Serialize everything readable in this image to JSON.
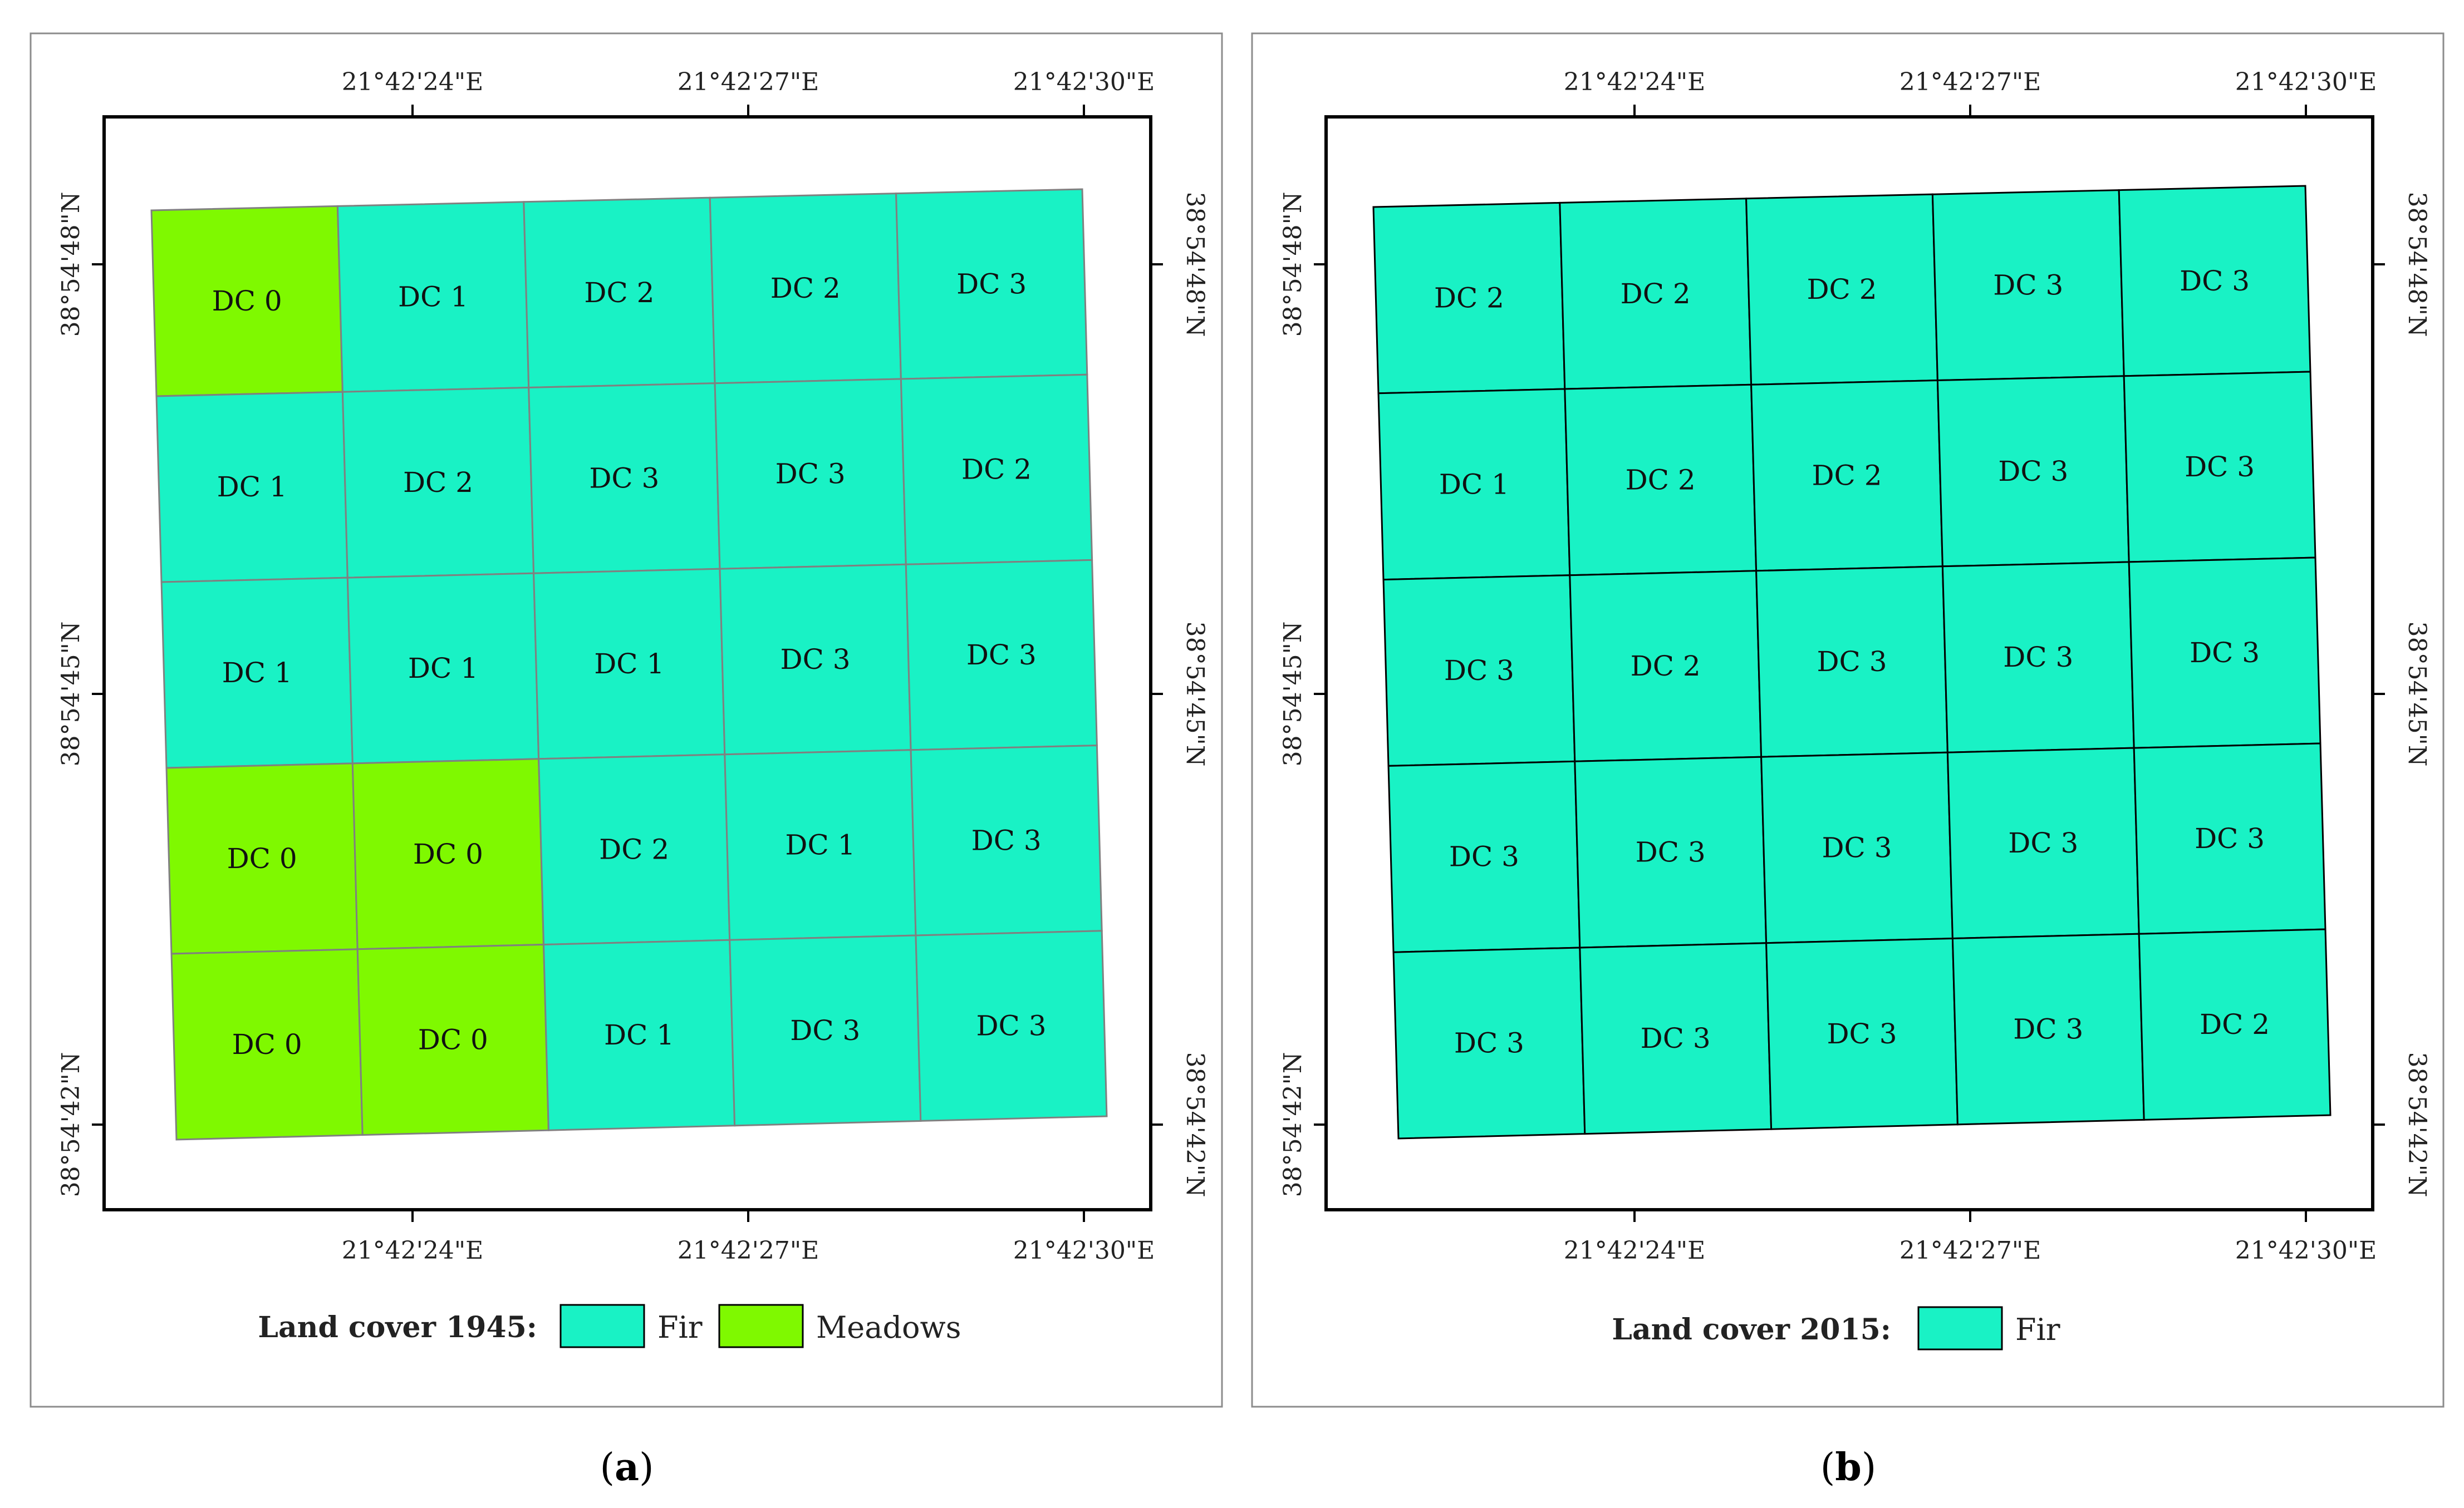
{
  "colors": {
    "fir": "#19f2c5",
    "meadows": "#7ff900",
    "frame": "#000000",
    "panel_border": "#8c8c8c"
  },
  "panels": [
    {
      "id": "a",
      "caption": "a",
      "legend": {
        "title": "Land cover 1945:",
        "items": [
          {
            "label": "Fir",
            "class": "fir"
          },
          {
            "label": "Meadows",
            "class": "meadows"
          }
        ]
      },
      "coords": {
        "lon": [
          "21°42'24\"E",
          "21°42'27\"E",
          "21°42'30\"E"
        ],
        "lat": [
          "38°54'48\"N",
          "38°54'45\"N",
          "38°54'42\"N"
        ]
      },
      "grid_lines": "gray",
      "cells": [
        [
          {
            "label": "DC 0",
            "class": "meadows"
          },
          {
            "label": "DC 1",
            "class": "fir"
          },
          {
            "label": "DC 2",
            "class": "fir"
          },
          {
            "label": "DC 2",
            "class": "fir"
          },
          {
            "label": "DC 3",
            "class": "fir"
          }
        ],
        [
          {
            "label": "DC 1",
            "class": "fir"
          },
          {
            "label": "DC 2",
            "class": "fir"
          },
          {
            "label": "DC 3",
            "class": "fir"
          },
          {
            "label": "DC 3",
            "class": "fir"
          },
          {
            "label": "DC 2",
            "class": "fir"
          }
        ],
        [
          {
            "label": "DC 1",
            "class": "fir"
          },
          {
            "label": "DC 1",
            "class": "fir"
          },
          {
            "label": "DC 1",
            "class": "fir"
          },
          {
            "label": "DC 3",
            "class": "fir"
          },
          {
            "label": "DC 3",
            "class": "fir"
          }
        ],
        [
          {
            "label": "DC 0",
            "class": "meadows"
          },
          {
            "label": "DC 0",
            "class": "meadows"
          },
          {
            "label": "DC 2",
            "class": "fir"
          },
          {
            "label": "DC 1",
            "class": "fir"
          },
          {
            "label": "DC 3",
            "class": "fir"
          }
        ],
        [
          {
            "label": "DC 0",
            "class": "meadows"
          },
          {
            "label": "DC 0",
            "class": "meadows"
          },
          {
            "label": "DC 1",
            "class": "fir"
          },
          {
            "label": "DC 3",
            "class": "fir"
          },
          {
            "label": "DC 3",
            "class": "fir"
          }
        ]
      ]
    },
    {
      "id": "b",
      "caption": "b",
      "legend": {
        "title": "Land cover 2015:",
        "items": [
          {
            "label": "Fir",
            "class": "fir"
          }
        ]
      },
      "coords": {
        "lon": [
          "21°42'24\"E",
          "21°42'27\"E",
          "21°42'30\"E"
        ],
        "lat": [
          "38°54'48\"N",
          "38°54'45\"N",
          "38°54'42\"N"
        ]
      },
      "grid_lines": "black",
      "cells": [
        [
          {
            "label": "DC 2",
            "class": "fir"
          },
          {
            "label": "DC 2",
            "class": "fir"
          },
          {
            "label": "DC 2",
            "class": "fir"
          },
          {
            "label": "DC 3",
            "class": "fir"
          },
          {
            "label": "DC 3",
            "class": "fir"
          }
        ],
        [
          {
            "label": "DC 1",
            "class": "fir"
          },
          {
            "label": "DC 2",
            "class": "fir"
          },
          {
            "label": "DC 2",
            "class": "fir"
          },
          {
            "label": "DC 3",
            "class": "fir"
          },
          {
            "label": "DC 3",
            "class": "fir"
          }
        ],
        [
          {
            "label": "DC 3",
            "class": "fir"
          },
          {
            "label": "DC 2",
            "class": "fir"
          },
          {
            "label": "DC 3",
            "class": "fir"
          },
          {
            "label": "DC 3",
            "class": "fir"
          },
          {
            "label": "DC 3",
            "class": "fir"
          }
        ],
        [
          {
            "label": "DC 3",
            "class": "fir"
          },
          {
            "label": "DC 3",
            "class": "fir"
          },
          {
            "label": "DC 3",
            "class": "fir"
          },
          {
            "label": "DC 3",
            "class": "fir"
          },
          {
            "label": "DC 3",
            "class": "fir"
          }
        ],
        [
          {
            "label": "DC 3",
            "class": "fir"
          },
          {
            "label": "DC 3",
            "class": "fir"
          },
          {
            "label": "DC 3",
            "class": "fir"
          },
          {
            "label": "DC 3",
            "class": "fir"
          },
          {
            "label": "DC 2",
            "class": "fir"
          }
        ]
      ]
    }
  ]
}
